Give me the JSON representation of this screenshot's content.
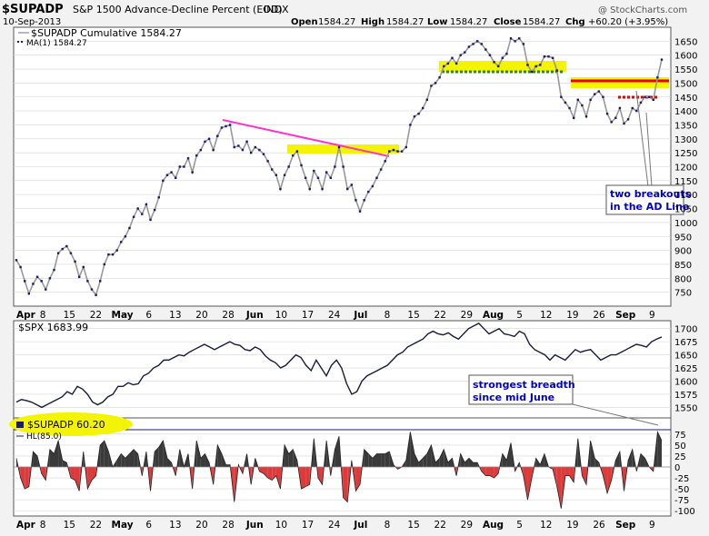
{
  "header": {
    "symbol": "$SUPADP",
    "description": "S&P 1500 Advance-Decline Percent (EOD)",
    "exchange": "INDX",
    "date": "10-Sep-2013",
    "open_label": "Open",
    "open": "1584.27",
    "high_label": "High",
    "high": "1584.27",
    "low_label": "Low",
    "low": "1584.27",
    "close_label": "Close",
    "close": "1584.27",
    "chg_label": "Chg",
    "chg": "+60.20 (+3.95%)",
    "watermark": "@ StockCharts.com"
  },
  "colors": {
    "ad_line": "#999999",
    "points": "#1a1a6e",
    "spx_line": "#1a1a3a",
    "hist_pos": "#3a3a3a",
    "hist_neg": "#dd3b3b",
    "trend_magenta": "#ff33cc",
    "highlight_yellow": "#f4f400",
    "resistance_red": "#e60000",
    "support_green": "#228b22",
    "callout_text": "#0000cc"
  },
  "chart_data": [
    {
      "type": "line",
      "panel": "main",
      "series": [
        {
          "name": "$SUPADP Cumulative 1584.27"
        },
        {
          "name": "MA(1) 1584.27"
        }
      ],
      "ylim": [
        700,
        1700
      ],
      "yticks": [
        "750",
        "800",
        "850",
        "900",
        "950",
        "1000",
        "1050",
        "1100",
        "1150",
        "1200",
        "1250",
        "1300",
        "1350",
        "1400",
        "1450",
        "1500",
        "1550",
        "1600",
        "1650"
      ],
      "y": [
        865,
        840,
        790,
        745,
        780,
        805,
        790,
        760,
        800,
        830,
        890,
        905,
        915,
        890,
        860,
        805,
        840,
        790,
        760,
        740,
        790,
        850,
        885,
        885,
        900,
        930,
        950,
        980,
        1020,
        1050,
        1030,
        1065,
        1010,
        1045,
        1090,
        1150,
        1170,
        1180,
        1160,
        1200,
        1200,
        1230,
        1180,
        1240,
        1260,
        1290,
        1300,
        1260,
        1310,
        1340,
        1345,
        1350,
        1270,
        1275,
        1260,
        1290,
        1250,
        1270,
        1260,
        1245,
        1220,
        1190,
        1170,
        1120,
        1170,
        1200,
        1240,
        1255,
        1205,
        1160,
        1120,
        1185,
        1160,
        1120,
        1180,
        1160,
        1200,
        1270,
        1200,
        1120,
        1135,
        1080,
        1040,
        1080,
        1110,
        1130,
        1160,
        1190,
        1220,
        1255,
        1260,
        1255,
        1255,
        1270,
        1350,
        1380,
        1390,
        1410,
        1440,
        1490,
        1500,
        1520,
        1560,
        1570,
        1590,
        1570,
        1600,
        1610,
        1630,
        1640,
        1650,
        1640,
        1620,
        1600,
        1575,
        1560,
        1590,
        1605,
        1660,
        1650,
        1660,
        1640,
        1565,
        1540,
        1560,
        1565,
        1595,
        1595,
        1590,
        1545,
        1450,
        1430,
        1410,
        1375,
        1440,
        1420,
        1380,
        1440,
        1460,
        1470,
        1450,
        1390,
        1360,
        1375,
        1410,
        1355,
        1370,
        1410,
        1400,
        1430,
        1450,
        1450,
        1440,
        1520,
        1584
      ],
      "xticks": [
        "Apr",
        "8",
        "15",
        "22",
        "May",
        "6",
        "13",
        "20",
        "28",
        "Jun",
        "10",
        "17",
        "24",
        "Jul",
        "8",
        "15",
        "22",
        "29",
        "Aug",
        "5",
        "12",
        "19",
        "26",
        "Sep",
        "9"
      ],
      "annotations": [
        "two breakouts",
        "in the AD Line"
      ]
    },
    {
      "type": "line",
      "panel": "middle",
      "series": [
        {
          "name": "$SPX 1683.99"
        }
      ],
      "ylim": [
        1530,
        1715
      ],
      "yticks": [
        "1550",
        "1575",
        "1600",
        "1625",
        "1650",
        "1675",
        "1700"
      ],
      "y": [
        1560,
        1565,
        1563,
        1560,
        1555,
        1550,
        1555,
        1560,
        1565,
        1570,
        1580,
        1575,
        1590,
        1585,
        1575,
        1560,
        1555,
        1560,
        1570,
        1575,
        1590,
        1590,
        1597,
        1593,
        1595,
        1610,
        1615,
        1625,
        1630,
        1640,
        1640,
        1645,
        1650,
        1648,
        1655,
        1660,
        1665,
        1670,
        1665,
        1660,
        1665,
        1670,
        1675,
        1670,
        1668,
        1660,
        1658,
        1665,
        1660,
        1648,
        1640,
        1635,
        1625,
        1630,
        1640,
        1650,
        1645,
        1630,
        1620,
        1640,
        1625,
        1610,
        1630,
        1640,
        1625,
        1595,
        1575,
        1580,
        1600,
        1610,
        1615,
        1620,
        1625,
        1630,
        1640,
        1650,
        1655,
        1665,
        1670,
        1675,
        1680,
        1690,
        1695,
        1690,
        1688,
        1692,
        1685,
        1680,
        1690,
        1700,
        1705,
        1710,
        1700,
        1690,
        1695,
        1700,
        1690,
        1688,
        1685,
        1695,
        1690,
        1670,
        1660,
        1655,
        1650,
        1640,
        1650,
        1645,
        1640,
        1650,
        1660,
        1655,
        1658,
        1660,
        1650,
        1640,
        1645,
        1650,
        1650,
        1655,
        1660,
        1665,
        1670,
        1668,
        1665,
        1675,
        1680,
        1684
      ],
      "annotations": [
        "strongest breadth",
        "since mid June"
      ]
    },
    {
      "type": "bar",
      "panel": "bottom",
      "series": [
        {
          "name": "$SUPADP 60.20"
        },
        {
          "name": "HL(85.0)"
        }
      ],
      "ylim": [
        -112,
        112
      ],
      "yticks": [
        "75",
        "50",
        "25",
        "0",
        "-25",
        "-50",
        "-75",
        "-100"
      ],
      "hline": 85,
      "values": [
        20,
        -25,
        -50,
        -45,
        35,
        25,
        -15,
        -30,
        40,
        30,
        60,
        15,
        10,
        -25,
        -30,
        -55,
        35,
        -50,
        -30,
        -20,
        50,
        60,
        35,
        0,
        15,
        30,
        20,
        30,
        40,
        30,
        -20,
        35,
        -55,
        35,
        45,
        60,
        20,
        10,
        -20,
        40,
        0,
        30,
        -50,
        60,
        20,
        30,
        10,
        -40,
        50,
        30,
        5,
        5,
        -80,
        5,
        -15,
        30,
        -40,
        20,
        -10,
        -15,
        -25,
        -30,
        -20,
        -50,
        50,
        30,
        40,
        15,
        -50,
        -45,
        -40,
        65,
        -25,
        -40,
        60,
        -20,
        40,
        70,
        -70,
        -80,
        15,
        -55,
        -40,
        40,
        30,
        20,
        30,
        30,
        30,
        35,
        5,
        -5,
        0,
        15,
        80,
        30,
        10,
        20,
        30,
        50,
        10,
        20,
        40,
        10,
        20,
        -20,
        30,
        10,
        20,
        10,
        10,
        -10,
        -20,
        -20,
        -25,
        -15,
        30,
        15,
        55,
        -10,
        10,
        -20,
        -75,
        -25,
        20,
        5,
        30,
        0,
        -5,
        -45,
        -95,
        -20,
        -20,
        -35,
        65,
        -20,
        -40,
        60,
        20,
        10,
        -20,
        -60,
        -30,
        15,
        35,
        -55,
        15,
        40,
        -10,
        30,
        20,
        0,
        -10,
        80,
        60
      ],
      "xticks": [
        "Apr",
        "8",
        "15",
        "22",
        "May",
        "6",
        "13",
        "20",
        "28",
        "Jun",
        "10",
        "17",
        "24",
        "Jul",
        "8",
        "15",
        "22",
        "29",
        "Aug",
        "5",
        "12",
        "19",
        "26",
        "Sep",
        "9"
      ]
    }
  ]
}
